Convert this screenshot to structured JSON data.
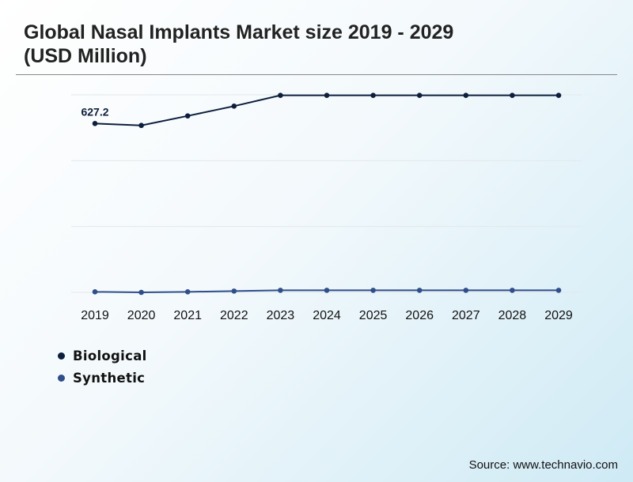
{
  "title": "Global Nasal Implants Market size 2019 - 2029\n(USD Million)",
  "source": "Source: www.technavio.com",
  "chart_data": {
    "type": "line",
    "categories": [
      "2019",
      "2020",
      "2021",
      "2022",
      "2023",
      "2024",
      "2025",
      "2026",
      "2027",
      "2028",
      "2029"
    ],
    "series": [
      {
        "name": "Biological",
        "color": "#0d1f3d",
        "values": [
          627.2,
          623.5,
          642,
          661,
          682,
          682,
          682,
          682,
          682,
          682,
          682
        ]
      },
      {
        "name": "Synthetic",
        "color": "#2f4e8a",
        "values": [
          300,
          299,
          300,
          301.5,
          303,
          303,
          303,
          303,
          303,
          303,
          303
        ]
      }
    ],
    "data_labels": [
      {
        "series": 0,
        "index": 0,
        "text": "627.2"
      }
    ],
    "ylim": [
      299,
      683
    ],
    "grid": true,
    "legend": "bottom-left"
  }
}
